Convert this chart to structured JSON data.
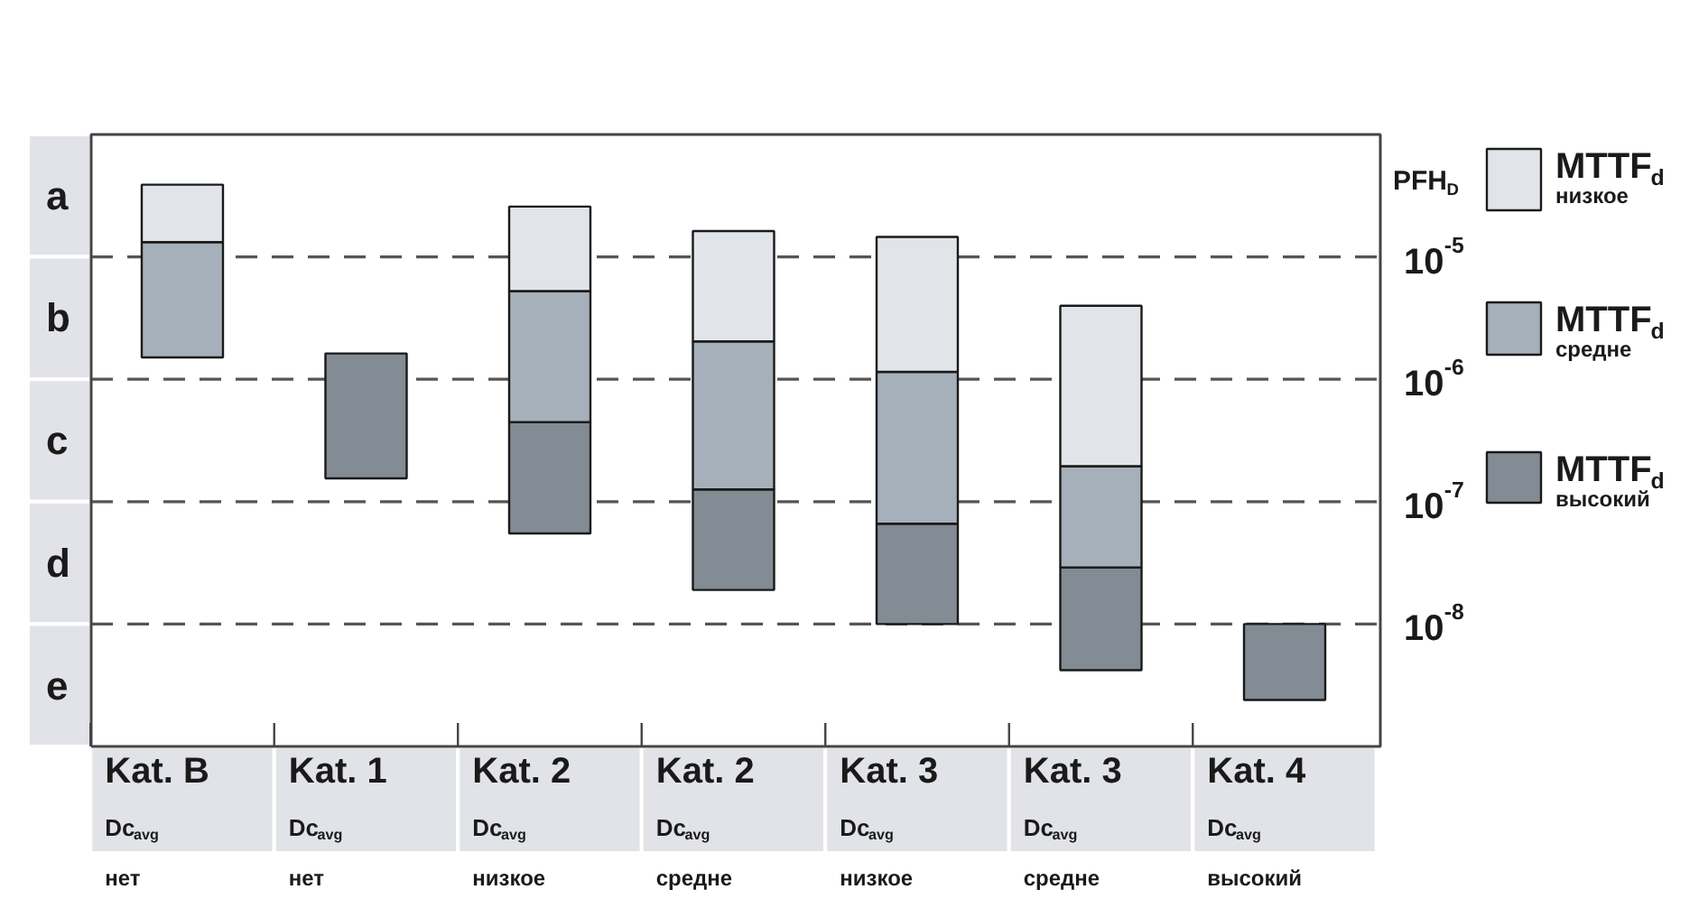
{
  "chart_data": {
    "type": "bar",
    "log": "y",
    "categories": [
      "Kat. B\nDc$_{avg}$\nнет",
      "Kat. 1\nDc$_{avg}$\nнет",
      "Kat. 2\nDc$_{avg}$\nнизкое",
      "Kat. 2\nDc$_{avg}$\nсредне",
      "Kat. 3\nDc$_{avg}$\nнизкое",
      "Kat. 3\nDc$_{avg}$\nсредне",
      "Kat. 4\nDc$_{avg}$\nвысокий"
    ],
    "series": [
      {
        "name": "MTTF$_{d}$\nвысокий",
        "color": "#838b94",
        "base": [
          null,
          1.55e-07,
          5.5e-08,
          1.9e-08,
          1e-08,
          4.2e-09,
          2.4e-09
        ],
        "values": [
          null,
          1.47e-06,
          3.92e-07,
          1.07e-07,
          5.6e-08,
          2.48e-08,
          7.6e-09
        ]
      },
      {
        "name": "MTTF$_{d}$\nсредне",
        "color": "#a6b0ba",
        "base": [
          1.51e-06,
          null,
          4.47e-07,
          1.26e-07,
          6.6e-08,
          2.9e-08,
          null
        ],
        "values": [
          1.17e-05,
          null,
          4.8e-06,
          1.91e-06,
          1.08e-06,
          1.66e-07,
          null
        ]
      },
      {
        "name": "MTTF$_{d}$\nнизкое",
        "color": "#e1e4e8",
        "base": [
          1.32e-05,
          null,
          5.25e-06,
          2.04e-06,
          1.15e-06,
          1.95e-07,
          null
        ],
        "values": [
          2.57e-05,
          null,
          2.05e-05,
          1.42e-05,
          1.34e-05,
          3.79e-06,
          null
        ]
      }
    ],
    "ylabel": "PFH$_{D}$",
    "ylim": [
      1e-09,
      0.0001
    ],
    "yticks": [
      {
        "value": 1e-05,
        "label": "10$^{-5}$"
      },
      {
        "value": 1e-06,
        "label": "10$^{-6}$"
      },
      {
        "value": 1e-07,
        "label": "10$^{-7}$"
      },
      {
        "value": 1e-08,
        "label": "10$^{-8}$"
      }
    ],
    "grid": "y",
    "line_style": "dashed",
    "legend": "right",
    "annotations": [
      "a",
      "b",
      "c",
      "d",
      "e"
    ]
  }
}
